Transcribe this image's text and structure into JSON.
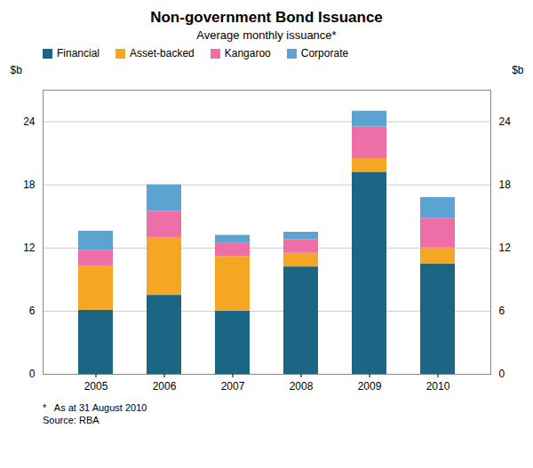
{
  "chart_data": {
    "type": "bar",
    "stacked": true,
    "title": "Non-government Bond Issuance",
    "subtitle": "Average monthly issuance*",
    "ylabel": "$b",
    "y2label": "$b",
    "footnotes": [
      "*   As at 31 August 2010",
      "Source: RBA"
    ],
    "categories": [
      "2005",
      "2006",
      "2007",
      "2008",
      "2009",
      "2010"
    ],
    "series": [
      {
        "name": "Financial",
        "color": "#1b6585",
        "values": [
          6.1,
          7.5,
          6.0,
          10.2,
          19.2,
          10.5
        ]
      },
      {
        "name": "Asset-backed",
        "color": "#f5a623",
        "values": [
          4.2,
          5.5,
          5.2,
          1.3,
          1.3,
          1.5
        ]
      },
      {
        "name": "Kangaroo",
        "color": "#ee6fa8",
        "values": [
          1.5,
          2.5,
          1.3,
          1.3,
          3.0,
          2.8
        ]
      },
      {
        "name": "Corporate",
        "color": "#5ba3d0",
        "values": [
          1.8,
          2.5,
          0.7,
          0.7,
          1.5,
          2.0
        ]
      }
    ],
    "ylim": [
      0,
      27
    ],
    "yticks": [
      0,
      6,
      12,
      18,
      24
    ],
    "y2lim": [
      0,
      27
    ],
    "y2ticks": [
      0,
      6,
      12,
      18,
      24
    ],
    "grid": true,
    "legend": "upper left"
  }
}
